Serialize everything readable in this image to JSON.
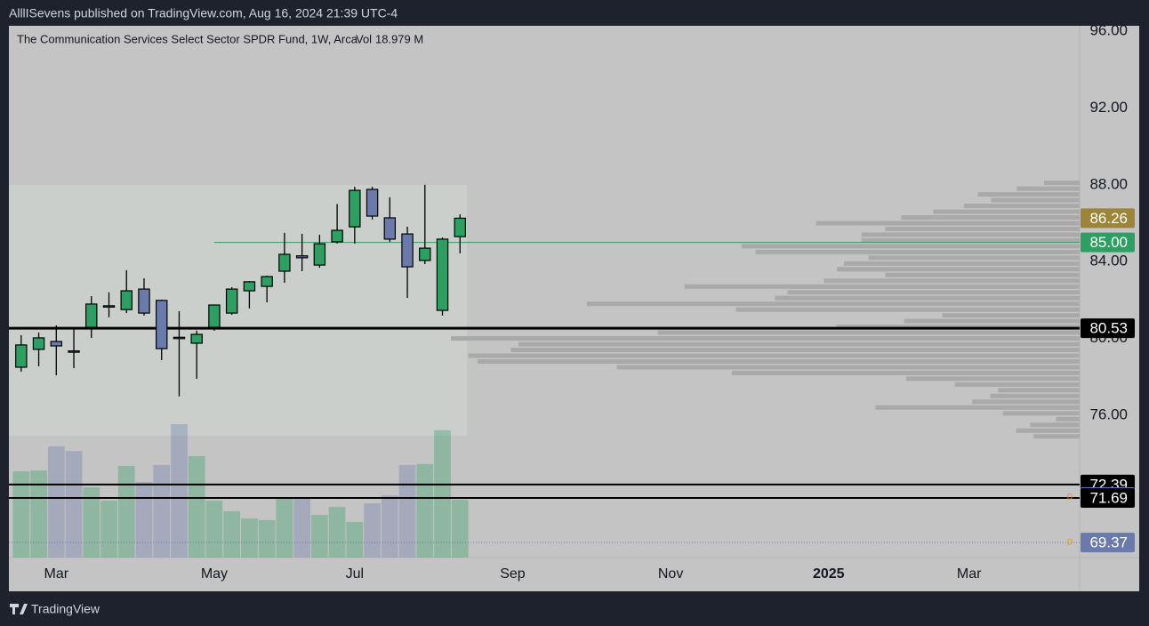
{
  "header": {
    "publisher": "AlllISevens published on TradingView.com, Aug 16, 2024 21:39 UTC-4"
  },
  "footer": {
    "brand": "TradingView"
  },
  "chart_data": {
    "type": "candlestick",
    "title": "The Communication Services Select Sector SPDR Fund, 1W, Arca",
    "volume_label": "Vol",
    "volume_value_label": "18.979 M",
    "x": [
      0,
      1,
      2,
      3,
      4,
      5,
      6,
      7,
      8,
      9,
      10,
      11,
      12,
      13,
      14,
      15,
      16,
      17,
      18,
      19,
      20,
      21,
      22,
      23,
      24,
      25
    ],
    "open": [
      78.5,
      79.43,
      79.84,
      79.35,
      80.58,
      81.69,
      81.5,
      82.57,
      81.98,
      80.06,
      79.75,
      80.58,
      81.32,
      82.48,
      82.71,
      83.5,
      84.3,
      83.82,
      85.03,
      85.81,
      87.76,
      86.28,
      85.44,
      84.06,
      81.46,
      85.3
    ],
    "high": [
      80.17,
      80.31,
      80.68,
      80.58,
      82.2,
      82.4,
      83.55,
      83.13,
      82.02,
      81.42,
      80.4,
      81.74,
      82.67,
      82.99,
      83.27,
      85.5,
      85.45,
      85.4,
      87.0,
      87.9,
      87.9,
      87.35,
      85.82,
      88.0,
      85.26,
      86.46
    ],
    "low": [
      78.27,
      78.55,
      78.08,
      78.45,
      80.03,
      81.1,
      81.32,
      81.19,
      78.87,
      76.98,
      77.9,
      80.4,
      81.23,
      81.56,
      81.88,
      82.9,
      83.5,
      83.68,
      84.94,
      84.94,
      86.19,
      85.03,
      82.11,
      83.87,
      81.19,
      84.43
    ],
    "close": [
      79.66,
      80.03,
      79.61,
      79.33,
      81.79,
      81.7,
      82.48,
      81.32,
      79.47,
      80.03,
      80.21,
      81.74,
      82.57,
      82.95,
      83.22,
      84.38,
      84.2,
      84.93,
      85.63,
      87.71,
      86.37,
      85.17,
      83.73,
      84.7,
      85.17,
      86.26
    ],
    "volume": [
      28.3,
      28.6,
      36.5,
      35.0,
      23.1,
      18.7,
      30.1,
      24.8,
      30.4,
      43.8,
      33.3,
      18.7,
      15.2,
      12.8,
      12.3,
      19.3,
      19.3,
      14.0,
      16.6,
      11.7,
      17.8,
      20.4,
      30.4,
      30.7,
      41.8,
      18.979
    ],
    "up_color": "#2f9e62",
    "down_color": "#6a7bab",
    "xlim": [
      -0.7,
      60.3
    ],
    "xticks": [
      {
        "value": 2,
        "label": "Mar"
      },
      {
        "value": 11,
        "label": "May"
      },
      {
        "value": 19,
        "label": "Jul"
      },
      {
        "value": 28,
        "label": "Sep"
      },
      {
        "value": 37,
        "label": "Nov"
      },
      {
        "value": 46,
        "label": "2025",
        "bold": true
      },
      {
        "value": 54,
        "label": "Mar"
      }
    ],
    "ylim": [
      68.59,
      96.28
    ],
    "yticks": [
      {
        "value": 96,
        "label": "96.00"
      },
      {
        "value": 92,
        "label": "92.00"
      },
      {
        "value": 88,
        "label": "88.00"
      },
      {
        "value": 84,
        "label": "84.00"
      },
      {
        "value": 80,
        "label": "80.00"
      },
      {
        "value": 76,
        "label": "76.00"
      }
    ],
    "volume_profile": {
      "prices": [
        88.1,
        87.8,
        87.5,
        87.2,
        86.9,
        86.6,
        86.3,
        86.0,
        85.7,
        85.4,
        85.1,
        84.8,
        84.5,
        84.2,
        83.9,
        83.6,
        83.3,
        83.0,
        82.7,
        82.4,
        82.1,
        81.8,
        81.5,
        81.2,
        80.9,
        80.6,
        80.3,
        80.0,
        79.7,
        79.4,
        79.1,
        78.8,
        78.5,
        78.2,
        77.9,
        77.6,
        77.3,
        77.0,
        76.7,
        76.4,
        76.1,
        75.8,
        75.5,
        75.2,
        74.9
      ],
      "values": [
        51,
        90,
        146,
        127,
        166,
        210,
        256,
        378,
        279,
        313,
        313,
        485,
        465,
        303,
        338,
        348,
        279,
        367,
        567,
        419,
        437,
        707,
        493,
        197,
        252,
        349,
        605,
        902,
        805,
        816,
        877,
        864,
        664,
        499,
        249,
        179,
        117,
        128,
        154,
        293,
        110,
        34,
        71,
        91,
        66
      ],
      "color": "#a9a9a9"
    },
    "price_lines": [
      {
        "value": 86.26,
        "color": "#9c8538"
      },
      {
        "value": 85,
        "label": "85.00",
        "color": "#2f9e62",
        "line": "solid-green",
        "start": 11
      },
      {
        "value": 80.53,
        "color": "#000000",
        "line": "thick"
      },
      {
        "value": 72.39,
        "color": "#000000",
        "line": "thin"
      },
      {
        "value": 71.74,
        "color": "#6a7bab"
      },
      {
        "value": 71.69,
        "color": "#000000",
        "line": "thin"
      },
      {
        "value": 69.37,
        "color": "#6a7bab",
        "line": "dotted"
      }
    ],
    "day_flags": [
      {
        "value": 71.74,
        "label": "D"
      },
      {
        "value": 69.37,
        "label": "D"
      }
    ]
  }
}
